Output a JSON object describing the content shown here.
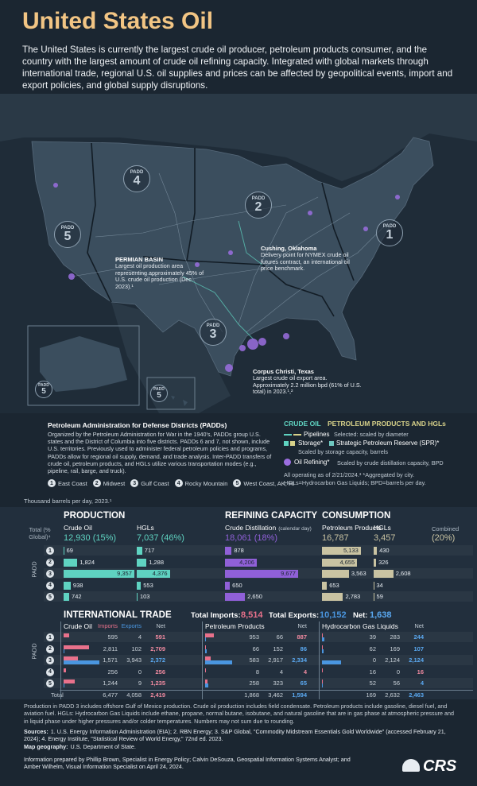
{
  "header": {
    "title": "United States Oil",
    "intro": "The United States is currently the largest crude oil producer, petroleum products consumer, and the country with the largest amount of crude oil refining capacity. Integrated with global markets through international trade, regional U.S. oil supplies and prices can be affected by geopolitical events, import and export policies, and global supply disruptions."
  },
  "map": {
    "padds": [
      {
        "word": "PADD",
        "number": "1"
      },
      {
        "word": "PADD",
        "number": "2"
      },
      {
        "word": "PADD",
        "number": "3"
      },
      {
        "word": "PADD",
        "number": "4"
      },
      {
        "word": "PADD",
        "number": "5"
      }
    ],
    "inset_labels": [
      {
        "word": "PADD",
        "number": "5"
      },
      {
        "word": "PADD",
        "number": "5"
      }
    ],
    "annotations": [
      {
        "title": "PERMIAN BASIN",
        "text": "Largest oil production area representing approximately 45% of U.S. crude oil production (Dec. 2023).¹"
      },
      {
        "title": "Cushing, Oklahoma",
        "text": "Delivery point for NYMEX crude oil futures contract, an international oil price benchmark."
      },
      {
        "title": "Corpus Christi, Texas",
        "text": "Largest crude oil export area. Approximately 2.2 million bpd (61% of U.S. total) in 2023.¹,²"
      }
    ]
  },
  "padd_info": {
    "title": "Petroleum Administration for Defense Districts (PADDs)",
    "text": "Organized by the Petroleum Administration for War in the 1940's, PADDs group U.S. states and the District of Columbia into five districts. PADDs 6 and 7, not shown, include U.S. territories. Previously used to administer federal petroleum policies and programs, PADDs allow for regional oil supply, demand, and trade analysis. Inter-PADD transfers of crude oil, petroleum products, and HGLs utilize various transportation modes (e.g., pipeline, rail, barge, and truck).",
    "regions": [
      {
        "number": "1",
        "name": "East Coast"
      },
      {
        "number": "2",
        "name": "Midwest"
      },
      {
        "number": "3",
        "name": "Gulf Coast"
      },
      {
        "number": "4",
        "name": "Rocky Mountain"
      },
      {
        "number": "5",
        "name": "West Coast, AK, HI"
      }
    ]
  },
  "legend": {
    "crude_oil": "CRUDE OIL",
    "products": "PETROLEUM PRODUCTS AND HGLs",
    "pipelines": "Pipelines",
    "pipelines_note": "Selected: scaled by diameter",
    "storage": "Storage*",
    "spr": "Strategic Petroleum Reserve (SPR)*",
    "storage_note": "Scaled by storage capacity, barrels",
    "refining": "Oil Refining*",
    "refining_note": "Scaled by crude distillation capacity, BPD",
    "note": "All operating as of 2/21/2024.³  *Aggregated by city.",
    "abbrev": "HGLs=Hydrocarbon Gas Liquids; BPD=barrels per day."
  },
  "units": "Thousand barrels per day, 2023.¹",
  "stats": {
    "padd_axis": "PADD",
    "row_numbers": [
      "1",
      "2",
      "3",
      "4",
      "5"
    ],
    "total_label": "Total (% Global)⁴",
    "production": {
      "title": "PRODUCTION",
      "color": "#5fd3c1",
      "columns": [
        {
          "name": "Crude Oil",
          "total": "12,930 (15%)",
          "values": [
            69,
            1824,
            9357,
            938,
            742
          ],
          "value_labels": [
            "69",
            "1,824",
            "9,357",
            "938",
            "742"
          ]
        },
        {
          "name": "HGLs",
          "total": "7,037 (46%)",
          "values": [
            717,
            1288,
            4376,
            553,
            103
          ],
          "value_labels": [
            "717",
            "1,288",
            "4,376",
            "553",
            "103"
          ]
        }
      ]
    },
    "refining": {
      "title": "REFINING CAPACITY",
      "color": "#9060d8",
      "columns": [
        {
          "name": "Crude Distillation",
          "name_note": "(calendar day)",
          "total": "18,061 (18%)",
          "values": [
            878,
            4206,
            9677,
            650,
            2650
          ],
          "value_labels": [
            "878",
            "4,206",
            "9,677",
            "650",
            "2,650"
          ]
        }
      ]
    },
    "consumption": {
      "title": "CONSUMPTION",
      "color": "#c9c3a2",
      "combined_label": "Combined",
      "combined_total": "(20%)",
      "columns": [
        {
          "name": "Petroleum Products",
          "total": "16,787",
          "values": [
            5133,
            4655,
            3563,
            653,
            2783
          ],
          "value_labels": [
            "5,133",
            "4,655",
            "3,563",
            "653",
            "2,783"
          ]
        },
        {
          "name": "HGLs",
          "total": "3,457",
          "values": [
            430,
            326,
            2608,
            34,
            59
          ],
          "value_labels": [
            "430",
            "326",
            "2,608",
            "34",
            "59"
          ]
        }
      ]
    }
  },
  "trade": {
    "title": "INTERNATIONAL TRADE",
    "imports_label": "Total Imports:",
    "imports_total": "8,514",
    "exports_label": "Total Exports:",
    "exports_total": "10,152",
    "net_label": "Net:",
    "net_total": "1,638",
    "net_total_color": "#5aa8f0",
    "import_color": "#e8718b",
    "export_color": "#4a96e0",
    "total_label": "Total",
    "groups": [
      {
        "name": "Crude Oil",
        "imports_label": "Imports",
        "exports_label": "Exports",
        "net_label": "Net",
        "imports": [
          595,
          2811,
          1571,
          256,
          1244
        ],
        "imports_labels": [
          "595",
          "2,811",
          "1,571",
          "256",
          "1,244"
        ],
        "exports": [
          4,
          102,
          3943,
          0,
          9
        ],
        "exports_labels": [
          "4",
          "102",
          "3,943",
          "0",
          "9"
        ],
        "net": [
          591,
          2709,
          2372,
          256,
          1235
        ],
        "net_labels": [
          "591",
          "2,709",
          "2,372",
          "256",
          "1,235"
        ],
        "net_colors": [
          "#f08aa0",
          "#f08aa0",
          "#5aa8f0",
          "#f08aa0",
          "#f08aa0"
        ],
        "totals": [
          "6,477",
          "4,058",
          "2,419"
        ],
        "total_net_color": "#f08aa0"
      },
      {
        "name": "Petroleum Products",
        "net_label": "Net",
        "imports": [
          953,
          66,
          583,
          8,
          258
        ],
        "imports_labels": [
          "953",
          "66",
          "583",
          "8",
          "258"
        ],
        "exports": [
          66,
          152,
          2917,
          4,
          323
        ],
        "exports_labels": [
          "66",
          "152",
          "2,917",
          "4",
          "323"
        ],
        "net": [
          887,
          86,
          2334,
          4,
          65
        ],
        "net_labels": [
          "887",
          "86",
          "2,334",
          "4",
          "65"
        ],
        "net_colors": [
          "#f08aa0",
          "#5aa8f0",
          "#5aa8f0",
          "#f08aa0",
          "#5aa8f0"
        ],
        "totals": [
          "1,868",
          "3,462",
          "1,594"
        ],
        "total_net_color": "#5aa8f0"
      },
      {
        "name": "Hydrocarbon Gas Liquids",
        "net_label": "Net",
        "imports": [
          39,
          62,
          0,
          16,
          52
        ],
        "imports_labels": [
          "39",
          "62",
          "0",
          "16",
          "52"
        ],
        "exports": [
          283,
          169,
          2124,
          0,
          56
        ],
        "exports_labels": [
          "283",
          "169",
          "2,124",
          "0",
          "56"
        ],
        "net": [
          244,
          107,
          2124,
          16,
          4
        ],
        "net_labels": [
          "244",
          "107",
          "2,124",
          "16",
          "4"
        ],
        "net_colors": [
          "#5aa8f0",
          "#5aa8f0",
          "#5aa8f0",
          "#f08aa0",
          "#5aa8f0"
        ],
        "totals": [
          "169",
          "2,632",
          "2,463"
        ],
        "total_net_color": "#5aa8f0"
      }
    ]
  },
  "footer": {
    "note": "Production in PADD 3 includes offshore Gulf of Mexico production. Crude oil production includes field condensate. Petroleum products include gasoline, diesel fuel, and aviation fuel. HGLs: Hydrocarbon Gas Liquids include ethane, propane, normal butane, isobutane, and natural gasoline that are in gas phase at atmospheric pressure and in liquid phase under higher pressures and/or colder temperatures. Numbers may not sum due to rounding.",
    "sources_label": "Sources:",
    "sources": "1. U.S. Energy Information Administration (EIA); 2. RBN Energy; 3. S&P Global, \"Commodity Midstream Essentials Gold Worldwide\" (accessed February 21, 2024); 4. Energy Institute, \"Statistical Review of World Energy,\" 72nd ed. 2023.",
    "geography_label": "Map geography:",
    "geography": "U.S. Department of State.",
    "prepared": "Information prepared by Phillip Brown, Specialist in Energy Policy; Calvin DeSouza, Geospatial Information Systems Analyst; and Amber Wilhelm, Visual Information Specialist on April 24, 2024.",
    "logo": "CRS"
  }
}
